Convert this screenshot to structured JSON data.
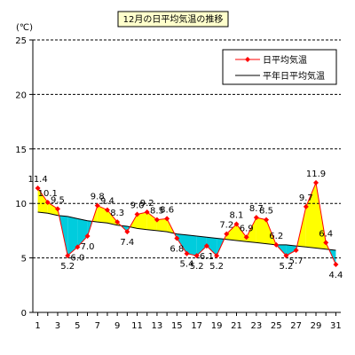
{
  "chart_data": {
    "type": "line",
    "title": "12月の日平均気温の推移",
    "ylabel": "(℃)",
    "xlabel": "",
    "ylim": [
      0,
      25
    ],
    "yticks": [
      "0",
      "5",
      "10",
      "15",
      "20",
      "25"
    ],
    "xticks": [
      "1",
      "3",
      "5",
      "7",
      "9",
      "11",
      "13",
      "15",
      "17",
      "19",
      "21",
      "23",
      "25",
      "27",
      "29",
      "31"
    ],
    "grid": "horizontal dashed",
    "legend_position": "top-right",
    "x": [
      1,
      2,
      3,
      4,
      5,
      6,
      7,
      8,
      9,
      10,
      11,
      12,
      13,
      14,
      15,
      16,
      17,
      18,
      19,
      20,
      21,
      22,
      23,
      24,
      25,
      26,
      27,
      28,
      29,
      30,
      31
    ],
    "series": [
      {
        "name": "日平均気温",
        "values": [
          11.4,
          10.1,
          9.5,
          5.2,
          6.0,
          7.0,
          9.8,
          9.4,
          8.3,
          7.4,
          9.0,
          9.2,
          8.5,
          8.6,
          6.8,
          5.4,
          5.2,
          6.1,
          5.2,
          7.2,
          8.1,
          6.9,
          8.7,
          8.5,
          6.2,
          5.2,
          5.7,
          9.7,
          11.9,
          6.4,
          4.4
        ],
        "labels": [
          "11.4",
          "10.1",
          "9.5",
          "5.2",
          "6.0",
          "7.0",
          "9.8",
          "9.4",
          "8.3",
          "7.4",
          "9.0",
          "9.2",
          "8.5",
          "8.6",
          "6.8",
          "5.4",
          "5.2",
          "6.1",
          "5.2",
          "7.2",
          "8.1",
          "6.9",
          "8.7",
          "8.5",
          "6.2",
          "5.2",
          "5.7",
          "9.7",
          "11.9",
          "6.4",
          "4.4"
        ],
        "color": "#ff0000",
        "marker": "diamond"
      },
      {
        "name": "平年日平均気温",
        "values": [
          9.2,
          9.1,
          8.9,
          8.8,
          8.6,
          8.4,
          8.3,
          8.2,
          8.0,
          7.9,
          7.7,
          7.6,
          7.5,
          7.4,
          7.2,
          7.1,
          7.0,
          6.9,
          6.8,
          6.7,
          6.6,
          6.5,
          6.4,
          6.3,
          6.2,
          6.2,
          6.1,
          6.0,
          5.9,
          5.8,
          5.7
        ],
        "color": "#000000"
      }
    ],
    "fill_above_normal": "#ffff00",
    "fill_below_normal": "#00ccdd"
  }
}
